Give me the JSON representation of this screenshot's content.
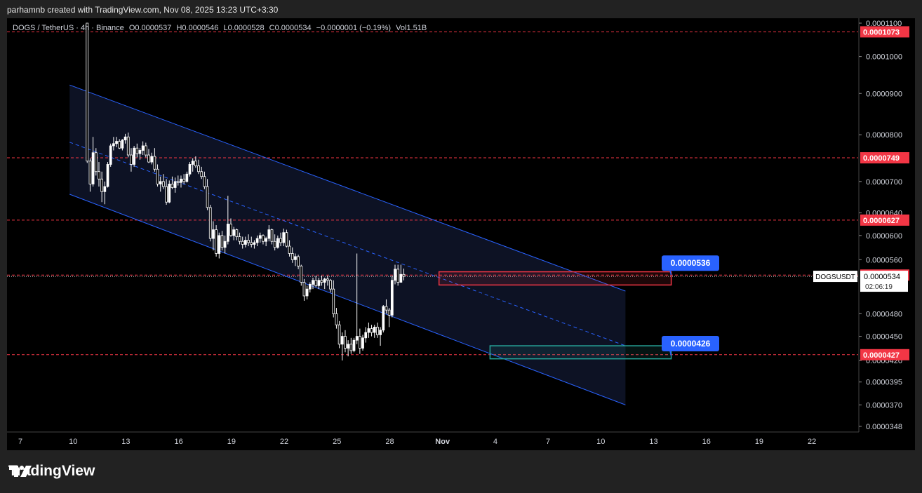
{
  "header": {
    "credit": "parhamnb created with TradingView.com, Nov 08, 2025 13:23 UTC+3:30"
  },
  "legend": {
    "symbol": "DOGS / TetherUS · 4h · Binance",
    "open": "O0.0000537",
    "high": "H0.0000546",
    "low": "L0.0000528",
    "close": "C0.0000534",
    "change": "−0.0000001 (−0.19%)",
    "volume": "Vol1.51B"
  },
  "brand": {
    "name": "TradingView",
    "icon": "tradingview-logo-icon"
  },
  "colors": {
    "background": "#000000",
    "frame": "#222222",
    "up": "#ffffff",
    "down": "#ffffff",
    "channel": "#2962ff",
    "level": "#f23645",
    "resistance_box": "#f23645",
    "support_box": "#26a69a",
    "callout": "#2962ff"
  },
  "chart_data": {
    "type": "candlestick",
    "symbol": "DOGSUSDT",
    "last_price": "0.0000534",
    "countdown": "02:06:19",
    "ylim": [
      3.48e-05,
      0.00011
    ],
    "y_ticks": [
      "0.0001100",
      "0.0001000",
      "0.0000900",
      "0.0000800",
      "0.0000700",
      "0.0000640",
      "0.0000600",
      "0.0000560",
      "0.0000480",
      "0.0000450",
      "0.0000420",
      "0.0000395",
      "0.0000370",
      "0.0000348"
    ],
    "y_tick_values": [
      0.00011,
      0.0001,
      9e-05,
      8e-05,
      7e-05,
      6.4e-05,
      6e-05,
      5.6e-05,
      4.8e-05,
      4.5e-05,
      4.2e-05,
      3.95e-05,
      3.7e-05,
      3.48e-05
    ],
    "x_ticks": [
      "7",
      "10",
      "13",
      "16",
      "19",
      "22",
      "25",
      "28",
      "Nov",
      "4",
      "7",
      "10",
      "13",
      "16",
      "19",
      "22"
    ],
    "x_tick_days": [
      0,
      3,
      6,
      9,
      12,
      15,
      18,
      21,
      24,
      27,
      30,
      33,
      36,
      39,
      42,
      45
    ],
    "horizontal_levels": [
      {
        "label": "0.0001073",
        "value": 0.0001073
      },
      {
        "label": "0.0000749",
        "value": 7.49e-05
      },
      {
        "label": "0.0000627",
        "value": 6.27e-05
      },
      {
        "label": "0.0000536",
        "value": 5.36e-05
      },
      {
        "label": "0.0000427",
        "value": 4.27e-05
      }
    ],
    "callouts": [
      {
        "label": "0.0000536",
        "value": 5.36e-05
      },
      {
        "label": "0.0000426",
        "value": 4.26e-05
      }
    ],
    "zones": [
      {
        "name": "resistance",
        "from_day": 23.8,
        "to_day": 37.0,
        "top": 5.41e-05,
        "bottom": 5.21e-05
      },
      {
        "name": "support",
        "from_day": 26.7,
        "to_day": 37.0,
        "top": 4.38e-05,
        "bottom": 4.22e-05
      }
    ],
    "channel": {
      "from_day": 2.8,
      "to_day": 34.4,
      "upper": [
        9.22e-05,
        5.12e-05
      ],
      "middle": [
        7.83e-05,
        4.38e-05
      ],
      "lower": [
        6.75e-05,
        3.7e-05
      ]
    },
    "candles_start_day": 3.8,
    "candles_per_day": 6,
    "candles": [
      [
        0.00011,
        0.00011,
        7.38e-05,
        7.42e-05
      ],
      [
        7.42e-05,
        7.48e-05,
        6.8e-05,
        6.95e-05
      ],
      [
        6.95e-05,
        7.95e-05,
        6.9e-05,
        7.6e-05
      ],
      [
        7.6e-05,
        7.7e-05,
        7.12e-05,
        7.2e-05
      ],
      [
        7.2e-05,
        7.4e-05,
        6.9e-05,
        7.05e-05
      ],
      [
        7.05e-05,
        7.2e-05,
        6.6e-05,
        6.8e-05
      ],
      [
        6.8e-05,
        7e-05,
        6.56e-05,
        6.9e-05
      ],
      [
        6.9e-05,
        7.4e-05,
        6.88e-05,
        7.35e-05
      ],
      [
        7.35e-05,
        7.8e-05,
        7.3e-05,
        7.75e-05
      ],
      [
        7.75e-05,
        7.95e-05,
        7.65e-05,
        7.8e-05
      ],
      [
        7.8e-05,
        7.95e-05,
        7.72e-05,
        7.85e-05
      ],
      [
        7.85e-05,
        7.9e-05,
        7.68e-05,
        7.7e-05
      ],
      [
        7.7e-05,
        7.9e-05,
        7.65e-05,
        7.88e-05
      ],
      [
        7.88e-05,
        8.02e-05,
        7.8e-05,
        7.95e-05
      ],
      [
        7.95e-05,
        8.05e-05,
        7.5e-05,
        7.55e-05
      ],
      [
        7.55e-05,
        7.7e-05,
        7.2e-05,
        7.35e-05
      ],
      [
        7.35e-05,
        7.75e-05,
        7.3e-05,
        7.7e-05
      ],
      [
        7.7e-05,
        7.8e-05,
        7.5e-05,
        7.58e-05
      ],
      [
        7.58e-05,
        7.7e-05,
        7.45e-05,
        7.65e-05
      ],
      [
        7.65e-05,
        7.85e-05,
        7.55e-05,
        7.75e-05
      ],
      [
        7.75e-05,
        7.82e-05,
        7.5e-05,
        7.55e-05
      ],
      [
        7.55e-05,
        7.68e-05,
        7.38e-05,
        7.4e-05
      ],
      [
        7.4e-05,
        7.6e-05,
        7.35e-05,
        7.52e-05
      ],
      [
        7.52e-05,
        7.7e-05,
        7.2e-05,
        7.25e-05
      ],
      [
        7.25e-05,
        7.35e-05,
        6.9e-05,
        6.95e-05
      ],
      [
        6.95e-05,
        7.1e-05,
        6.8e-05,
        7e-05
      ],
      [
        7e-05,
        7.15e-05,
        6.85e-05,
        6.9e-05
      ],
      [
        6.9e-05,
        7.05e-05,
        6.55e-05,
        6.6e-05
      ],
      [
        6.6e-05,
        7.02e-05,
        6.58e-05,
        6.95e-05
      ],
      [
        6.95e-05,
        7.1e-05,
        6.85e-05,
        6.88e-05
      ],
      [
        6.88e-05,
        7.08e-05,
        6.78e-05,
        7e-05
      ],
      [
        7e-05,
        7.12e-05,
        6.92e-05,
        6.98e-05
      ],
      [
        6.98e-05,
        7.12e-05,
        6.88e-05,
        7.05e-05
      ],
      [
        7.05e-05,
        7.15e-05,
        6.95e-05,
        7e-05
      ],
      [
        7e-05,
        7.2e-05,
        6.98e-05,
        7.15e-05
      ],
      [
        7.15e-05,
        7.4e-05,
        7.1e-05,
        7.35e-05
      ],
      [
        7.35e-05,
        7.48e-05,
        7.2e-05,
        7.42e-05
      ],
      [
        7.42e-05,
        7.52e-05,
        7.28e-05,
        7.32e-05
      ],
      [
        7.32e-05,
        7.45e-05,
        7.15e-05,
        7.2e-05
      ],
      [
        7.2e-05,
        7.3e-05,
        7.05e-05,
        7.1e-05
      ],
      [
        7.1e-05,
        7.2e-05,
        6.85e-05,
        6.9e-05
      ],
      [
        6.9e-05,
        7.05e-05,
        6.45e-05,
        6.5e-05
      ],
      [
        6.5e-05,
        6.55e-05,
        5.9e-05,
        5.95e-05
      ],
      [
        5.95e-05,
        6.25e-05,
        5.75e-05,
        6.1e-05
      ],
      [
        6.1e-05,
        6.18e-05,
        5.65e-05,
        5.7e-05
      ],
      [
        5.7e-05,
        6.05e-05,
        5.62e-05,
        6e-05
      ],
      [
        6e-05,
        6.08e-05,
        5.75e-05,
        5.8e-05
      ],
      [
        5.8e-05,
        6e-05,
        5.7e-05,
        5.9e-05
      ],
      [
        5.9e-05,
        6.72e-05,
        5.85e-05,
        6.2e-05
      ],
      [
        6.2e-05,
        6.3e-05,
        5.98e-05,
        6e-05
      ],
      [
        6e-05,
        6.15e-05,
        5.92e-05,
        6.1e-05
      ],
      [
        6.1e-05,
        6.12e-05,
        5.92e-05,
        5.98e-05
      ],
      [
        5.98e-05,
        6.05e-05,
        5.85e-05,
        5.9e-05
      ],
      [
        5.9e-05,
        5.98e-05,
        5.78e-05,
        5.85e-05
      ],
      [
        5.85e-05,
        5.98e-05,
        5.8e-05,
        5.92e-05
      ],
      [
        5.92e-05,
        6.02e-05,
        5.82e-05,
        5.88e-05
      ],
      [
        5.88e-05,
        5.98e-05,
        5.8e-05,
        5.85e-05
      ],
      [
        5.85e-05,
        5.92e-05,
        5.78e-05,
        5.88e-05
      ],
      [
        5.88e-05,
        6e-05,
        5.82e-05,
        5.95e-05
      ],
      [
        5.95e-05,
        6.05e-05,
        5.88e-05,
        6e-05
      ],
      [
        6e-05,
        6.02e-05,
        5.85e-05,
        5.9e-05
      ],
      [
        5.9e-05,
        5.98e-05,
        5.82e-05,
        5.95e-05
      ],
      [
        5.95e-05,
        6.18e-05,
        5.9e-05,
        6.1e-05
      ],
      [
        6.1e-05,
        6.12e-05,
        5.85e-05,
        5.9e-05
      ],
      [
        5.9e-05,
        6.02e-05,
        5.75e-05,
        5.8e-05
      ],
      [
        5.8e-05,
        6e-05,
        5.78e-05,
        5.95e-05
      ],
      [
        5.95e-05,
        6.05e-05,
        5.82e-05,
        5.88e-05
      ],
      [
        5.88e-05,
        6.12e-05,
        5.82e-05,
        6.05e-05
      ],
      [
        6.05e-05,
        6.1e-05,
        5.8e-05,
        5.82e-05
      ],
      [
        5.82e-05,
        5.92e-05,
        5.65e-05,
        5.7e-05
      ],
      [
        5.7e-05,
        5.8e-05,
        5.55e-05,
        5.6e-05
      ],
      [
        5.6e-05,
        5.7e-05,
        5.5e-05,
        5.65e-05
      ],
      [
        5.65e-05,
        5.68e-05,
        5.45e-05,
        5.5e-05
      ],
      [
        5.5e-05,
        5.52e-05,
        5.2e-05,
        5.25e-05
      ],
      [
        5.25e-05,
        5.3e-05,
        4.98e-05,
        5.05e-05
      ],
      [
        5.05e-05,
        5.2e-05,
        5e-05,
        5.15e-05
      ],
      [
        5.15e-05,
        5.25e-05,
        5.1e-05,
        5.22e-05
      ],
      [
        5.22e-05,
        5.32e-05,
        5.15e-05,
        5.28e-05
      ],
      [
        5.28e-05,
        5.35e-05,
        5.18e-05,
        5.2e-05
      ],
      [
        5.2e-05,
        5.32e-05,
        5.15e-05,
        5.28e-05
      ],
      [
        5.28e-05,
        5.35e-05,
        5.2e-05,
        5.25e-05
      ],
      [
        5.25e-05,
        5.32e-05,
        5.15e-05,
        5.3e-05
      ],
      [
        5.3e-05,
        5.35e-05,
        5.2e-05,
        5.28e-05
      ],
      [
        5.28e-05,
        5.3e-05,
        5.1e-05,
        5.15e-05
      ],
      [
        5.15e-05,
        5.28e-05,
        4.75e-05,
        4.8e-05
      ],
      [
        4.8e-05,
        4.88e-05,
        4.6e-05,
        4.65e-05
      ],
      [
        4.65e-05,
        4.7e-05,
        4.35e-05,
        4.4e-05
      ],
      [
        4.4e-05,
        4.55e-05,
        4.2e-05,
        4.5e-05
      ],
      [
        4.5e-05,
        4.58e-05,
        4.3e-05,
        4.35e-05
      ],
      [
        4.35e-05,
        4.45e-05,
        4.25e-05,
        4.4e-05
      ],
      [
        4.4e-05,
        4.48e-05,
        4.28e-05,
        4.32e-05
      ],
      [
        4.32e-05,
        4.48e-05,
        4.3e-05,
        4.45e-05
      ],
      [
        4.45e-05,
        5.7e-05,
        4.4e-05,
        4.5e-05
      ],
      [
        4.5e-05,
        4.6e-05,
        4.28e-05,
        4.35e-05
      ],
      [
        4.35e-05,
        4.52e-05,
        4.32e-05,
        4.48e-05
      ],
      [
        4.48e-05,
        4.62e-05,
        4.42e-05,
        4.55e-05
      ],
      [
        4.55e-05,
        4.68e-05,
        4.48e-05,
        4.6e-05
      ],
      [
        4.6e-05,
        4.65e-05,
        4.5e-05,
        4.55e-05
      ],
      [
        4.55e-05,
        4.65e-05,
        4.48e-05,
        4.62e-05
      ],
      [
        4.62e-05,
        4.68e-05,
        4.48e-05,
        4.52e-05
      ],
      [
        4.52e-05,
        4.62e-05,
        4.38e-05,
        4.58e-05
      ],
      [
        4.58e-05,
        4.92e-05,
        4.55e-05,
        4.9e-05
      ],
      [
        4.9e-05,
        5e-05,
        4.8e-05,
        4.85e-05
      ],
      [
        4.85e-05,
        4.88e-05,
        4.62e-05,
        4.78e-05
      ],
      [
        4.78e-05,
        5.35e-05,
        4.75e-05,
        5.28e-05
      ],
      [
        5.28e-05,
        5.52e-05,
        5.22e-05,
        5.45e-05
      ],
      [
        5.45e-05,
        5.52e-05,
        5.2e-05,
        5.25e-05
      ],
      [
        5.25e-05,
        5.52e-05,
        5.25e-05,
        5.37e-05
      ],
      [
        5.37e-05,
        5.46e-05,
        5.28e-05,
        5.34e-05
      ]
    ]
  }
}
